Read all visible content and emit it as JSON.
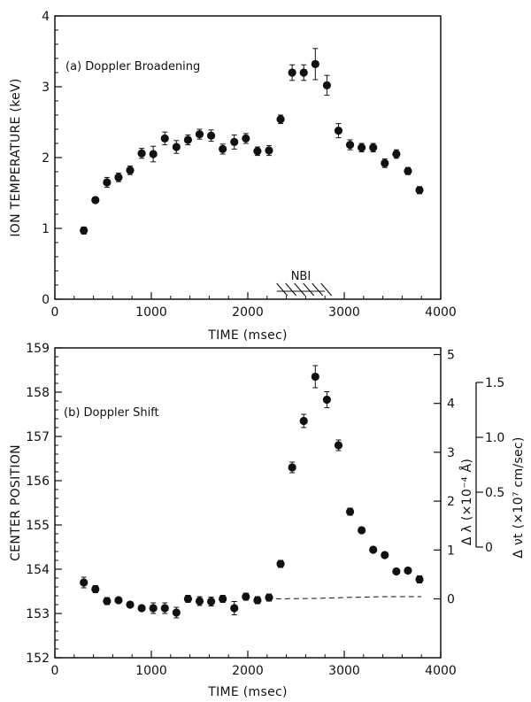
{
  "chart_data": [
    {
      "type": "scatter",
      "annotation": "(a) Doppler Broadening",
      "xlabel": "TIME (msec)",
      "ylabel": "ION TEMPERATURE (keV)",
      "xlim": [
        0,
        4000
      ],
      "ylim": [
        0,
        4
      ],
      "x_ticks": [
        0,
        1000,
        2000,
        3000,
        4000
      ],
      "y_ticks": [
        0,
        1,
        2,
        3,
        4
      ],
      "nbi_label": "NBI",
      "nbi_range": [
        2300,
        2800
      ],
      "series": [
        {
          "x": [
            300,
            420,
            540,
            660,
            780,
            900,
            1020,
            1140,
            1260,
            1380,
            1500,
            1620,
            1740,
            1860,
            1980,
            2100,
            2220,
            2340,
            2460,
            2580,
            2700,
            2820,
            2940,
            3060,
            3180,
            3300,
            3420,
            3540,
            3660,
            3780
          ],
          "y": [
            0.97,
            1.4,
            1.65,
            1.72,
            1.82,
            2.06,
            2.05,
            2.27,
            2.15,
            2.25,
            2.33,
            2.31,
            2.12,
            2.22,
            2.27,
            2.09,
            2.1,
            2.54,
            3.2,
            3.2,
            3.32,
            3.02,
            2.38,
            2.18,
            2.14,
            2.14,
            1.92,
            2.05,
            1.81,
            1.54
          ],
          "err": [
            0.05,
            0.04,
            0.07,
            0.06,
            0.06,
            0.07,
            0.11,
            0.09,
            0.09,
            0.07,
            0.07,
            0.08,
            0.07,
            0.1,
            0.07,
            0.06,
            0.07,
            0.06,
            0.11,
            0.11,
            0.22,
            0.14,
            0.1,
            0.07,
            0.06,
            0.06,
            0.06,
            0.06,
            0.05,
            0.05
          ]
        }
      ]
    },
    {
      "type": "scatter",
      "annotation": "(b) Doppler Shift",
      "xlabel": "TIME (msec)",
      "ylabel": "CENTER POSITION",
      "xlim": [
        0,
        4000
      ],
      "ylim": [
        152,
        159
      ],
      "x_ticks": [
        0,
        1000,
        2000,
        3000,
        4000
      ],
      "y_ticks": [
        152,
        153,
        154,
        155,
        156,
        157,
        158,
        159
      ],
      "right_axis_1": {
        "label": "Δ λ (×10⁻⁴ Å)",
        "ticks": [
          0,
          1,
          2,
          3,
          4,
          5
        ],
        "range": [
          0,
          5.2
        ]
      },
      "right_axis_2": {
        "label": "Δ νt (×10⁷ cm/sec)",
        "ticks": [
          "0",
          "0.5",
          "1.0",
          "1.5"
        ]
      },
      "baseline": {
        "x": [
          2200,
          2700,
          3000,
          3400,
          3800
        ],
        "y": [
          153.33,
          153.34,
          153.36,
          153.38,
          153.38
        ]
      },
      "series": [
        {
          "x": [
            300,
            420,
            540,
            660,
            780,
            900,
            1020,
            1140,
            1260,
            1380,
            1500,
            1620,
            1740,
            1860,
            1980,
            2100,
            2220,
            2340,
            2460,
            2580,
            2700,
            2820,
            2940,
            3060,
            3180,
            3300,
            3420,
            3540,
            3660,
            3780
          ],
          "y": [
            153.7,
            153.55,
            153.28,
            153.3,
            153.2,
            153.12,
            153.12,
            153.12,
            153.02,
            153.33,
            153.28,
            153.27,
            153.33,
            153.12,
            153.38,
            153.3,
            153.36,
            154.12,
            156.3,
            157.35,
            158.35,
            157.83,
            156.8,
            155.3,
            154.88,
            154.44,
            154.32,
            153.95,
            153.97,
            153.77
          ],
          "err": [
            0.12,
            0.08,
            0.08,
            0.06,
            0.06,
            0.06,
            0.12,
            0.12,
            0.12,
            0.08,
            0.1,
            0.1,
            0.08,
            0.15,
            0.08,
            0.08,
            0.08,
            0.08,
            0.12,
            0.15,
            0.25,
            0.18,
            0.12,
            0.08,
            0.06,
            0.06,
            0.06,
            0.06,
            0.06,
            0.08
          ]
        }
      ]
    }
  ]
}
